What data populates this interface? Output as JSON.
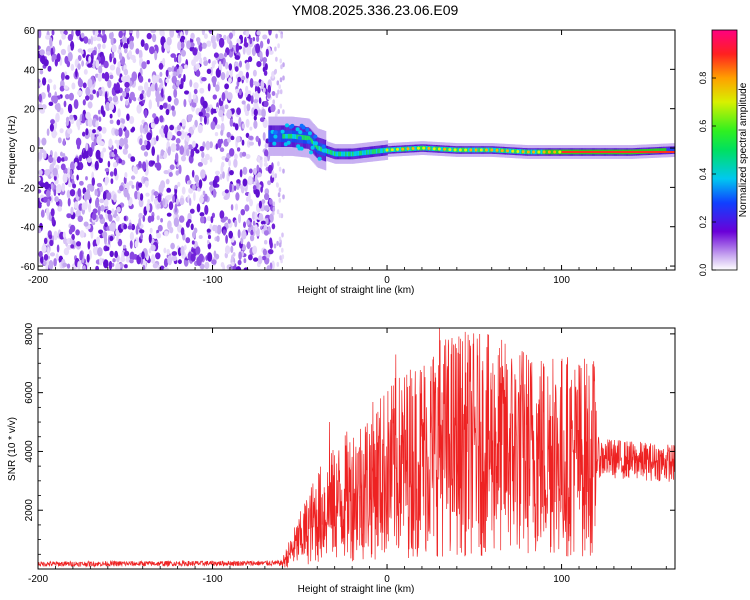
{
  "title": "YM08.2025.336.23.06.E09",
  "chart_data": [
    {
      "type": "heatmap",
      "xlabel": "Height of straight line (km)",
      "ylabel": "Frequency (Hz)",
      "xlim": [
        -200,
        165
      ],
      "ylim": [
        -62,
        60
      ],
      "xticks": [
        -200,
        -100,
        0,
        100
      ],
      "yticks": [
        -60,
        -40,
        -20,
        0,
        20,
        40,
        60
      ],
      "noise_region": [
        -200,
        -65
      ],
      "signal_band": {
        "x": [
          -68,
          -55,
          -45,
          -40,
          -30,
          -20,
          -10,
          0,
          20,
          40,
          60,
          80,
          100,
          120,
          140,
          165
        ],
        "center_hz": [
          6,
          6,
          5,
          0,
          -3,
          -3,
          -2,
          -1,
          0,
          -1,
          -1,
          -2,
          -2,
          -2,
          -2,
          -1
        ]
      },
      "colorbar": {
        "label": "Normalized spectral amplitude",
        "ticks": [
          0.0,
          0.2,
          0.4,
          0.6,
          0.8
        ],
        "range": [
          0,
          1
        ]
      }
    },
    {
      "type": "line",
      "xlabel": "Height of straight line (km)",
      "ylabel": "SNR (10 * v/v)",
      "xlim": [
        -200,
        165
      ],
      "ylim": [
        0,
        8200
      ],
      "xticks": [
        -200,
        -100,
        0,
        100
      ],
      "yticks": [
        2000,
        4000,
        6000,
        8000
      ],
      "series": [
        {
          "name": "SNR",
          "color": "#ee2222",
          "envelope_x": [
            -200,
            -60,
            -50,
            -40,
            -20,
            0,
            20,
            30,
            40,
            60,
            80,
            100,
            120,
            140,
            165
          ],
          "envelope_mean": [
            170,
            200,
            1000,
            1800,
            2600,
            3300,
            3900,
            4200,
            4300,
            4200,
            4000,
            3900,
            3800,
            3700,
            3600
          ],
          "peak_annotations": [
            {
              "x": 30,
              "y": 8200
            },
            {
              "x": 5,
              "y": 7300
            },
            {
              "x": 95,
              "y": 7150
            },
            {
              "x": -33,
              "y": 5000
            }
          ]
        }
      ]
    }
  ],
  "colors": {
    "signal": "#ee2222",
    "noise_dots": "#7a2ee0"
  }
}
